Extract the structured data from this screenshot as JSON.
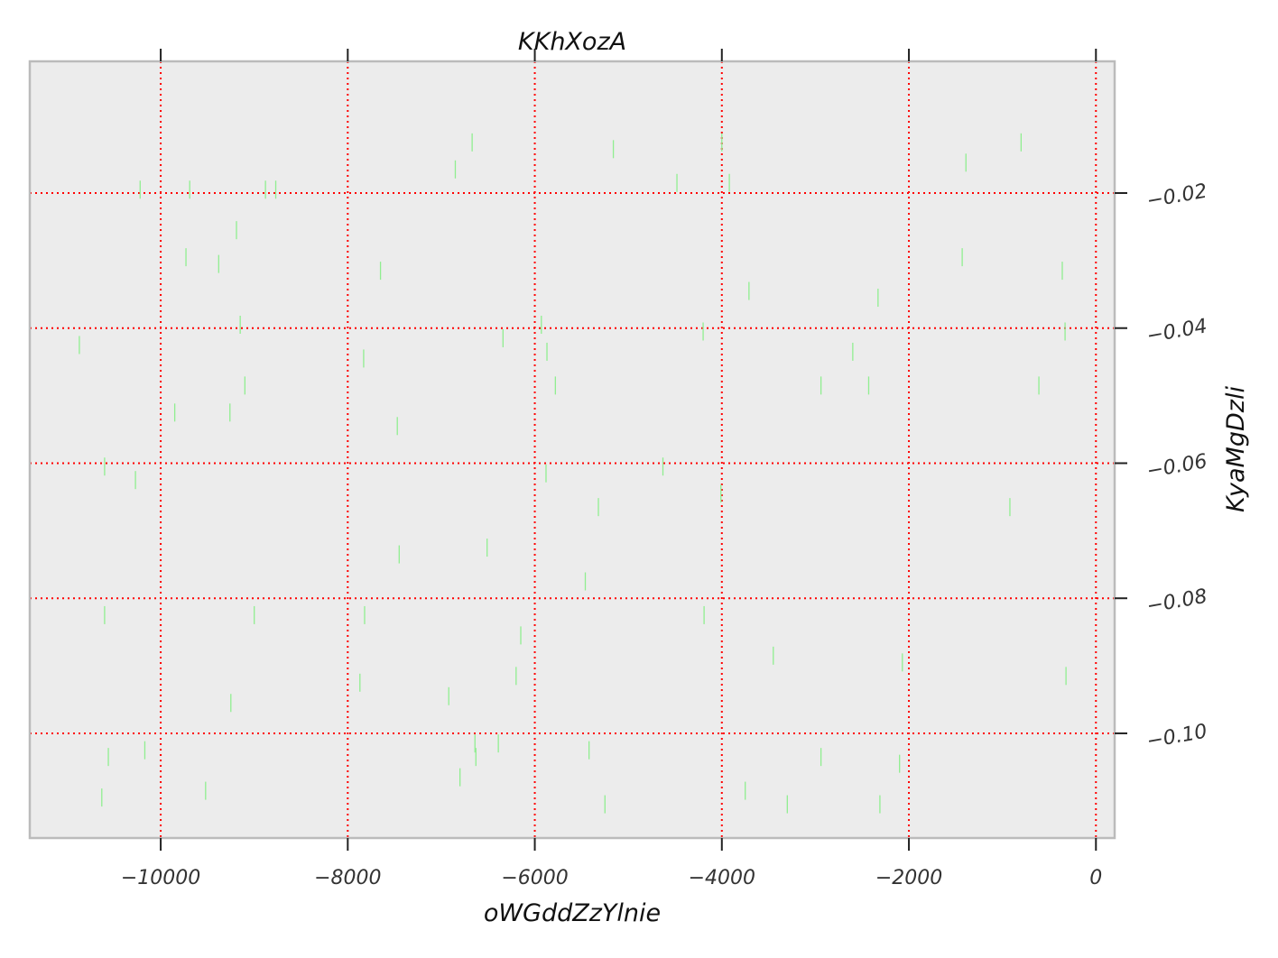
{
  "chart_data": {
    "type": "scatter",
    "marker": "vertical-line",
    "title": "KKhXozA",
    "xlabel": "oWGddZzYlnie",
    "ylabel": "KyaMgDzli",
    "xlim": [
      -11400,
      200
    ],
    "ylim": [
      -0.1155,
      -0.0005
    ],
    "xticks": [
      -10000,
      -8000,
      -6000,
      -4000,
      -2000,
      0
    ],
    "xtick_labels": [
      "−10000",
      "−8000",
      "−6000",
      "−4000",
      "−2000",
      "0"
    ],
    "yticks": [
      -0.02,
      -0.04,
      -0.06,
      -0.08,
      -0.1
    ],
    "ytick_labels": [
      "−0.02",
      "−0.04",
      "−0.06",
      "−0.08",
      "−0.10"
    ],
    "xaxis_position": "bottom",
    "yaxis_position": "right",
    "grid": true,
    "colors": {
      "background": "#ececec",
      "grid": "#ff0000",
      "marker": "#90ee90",
      "spine": "#bbbbbb"
    },
    "series": [
      {
        "points": [
          [
            -10870,
            -0.0425
          ],
          [
            -10600,
            -0.0605
          ],
          [
            -10600,
            -0.0825
          ],
          [
            -10560,
            -0.1035
          ],
          [
            -10630,
            -0.1095
          ],
          [
            -10220,
            -0.0195
          ],
          [
            -10270,
            -0.0625
          ],
          [
            -10170,
            -0.1025
          ],
          [
            -9850,
            -0.0525
          ],
          [
            -9730,
            -0.0295
          ],
          [
            -9690,
            -0.0195
          ],
          [
            -9520,
            -0.1085
          ],
          [
            -9380,
            -0.0305
          ],
          [
            -9260,
            -0.0525
          ],
          [
            -9250,
            -0.0955
          ],
          [
            -9190,
            -0.0255
          ],
          [
            -9150,
            -0.0395
          ],
          [
            -9100,
            -0.0485
          ],
          [
            -9000,
            -0.0825
          ],
          [
            -8880,
            -0.0195
          ],
          [
            -8770,
            -0.0195
          ],
          [
            -7870,
            -0.0925
          ],
          [
            -7830,
            -0.0445
          ],
          [
            -7820,
            -0.0825
          ],
          [
            -7650,
            -0.0315
          ],
          [
            -7470,
            -0.0545
          ],
          [
            -7450,
            -0.0735
          ],
          [
            -6920,
            -0.0945
          ],
          [
            -6850,
            -0.0165
          ],
          [
            -6800,
            -0.1065
          ],
          [
            -6670,
            -0.0125
          ],
          [
            -6640,
            -0.1015
          ],
          [
            -6630,
            -0.1035
          ],
          [
            -6510,
            -0.0725
          ],
          [
            -6390,
            -0.1015
          ],
          [
            -6340,
            -0.0415
          ],
          [
            -6200,
            -0.0915
          ],
          [
            -6150,
            -0.0855
          ],
          [
            -5930,
            -0.0395
          ],
          [
            -5870,
            -0.0435
          ],
          [
            -5880,
            -0.0615
          ],
          [
            -5780,
            -0.0485
          ],
          [
            -5460,
            -0.0775
          ],
          [
            -5420,
            -0.1025
          ],
          [
            -5320,
            -0.0665
          ],
          [
            -5250,
            -0.1105
          ],
          [
            -5160,
            -0.0135
          ],
          [
            -4630,
            -0.0605
          ],
          [
            -4480,
            -0.0185
          ],
          [
            -4200,
            -0.0405
          ],
          [
            -4190,
            -0.0825
          ],
          [
            -4000,
            -0.0125
          ],
          [
            -4010,
            -0.0645
          ],
          [
            -3920,
            -0.0185
          ],
          [
            -3750,
            -0.1085
          ],
          [
            -3710,
            -0.0345
          ],
          [
            -3450,
            -0.0885
          ],
          [
            -3300,
            -0.1105
          ],
          [
            -2940,
            -0.0485
          ],
          [
            -2940,
            -0.1035
          ],
          [
            -2600,
            -0.0435
          ],
          [
            -2430,
            -0.0485
          ],
          [
            -2330,
            -0.0355
          ],
          [
            -2310,
            -0.1105
          ],
          [
            -2070,
            -0.0895
          ],
          [
            -2100,
            -0.1045
          ],
          [
            -1430,
            -0.0295
          ],
          [
            -1390,
            -0.0155
          ],
          [
            -920,
            -0.0665
          ],
          [
            -800,
            -0.0125
          ],
          [
            -610,
            -0.0485
          ],
          [
            -360,
            -0.0315
          ],
          [
            -330,
            -0.0405
          ],
          [
            -320,
            -0.0915
          ]
        ]
      }
    ]
  }
}
